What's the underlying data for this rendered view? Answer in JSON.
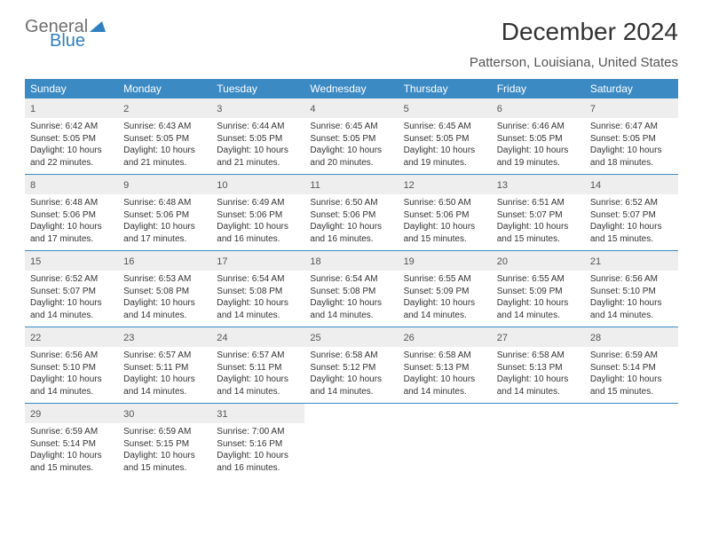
{
  "brand": {
    "word1": "General",
    "word2": "Blue",
    "icon_color": "#2f7fc1",
    "word1_color": "#6f6f6f",
    "word2_color": "#2f7fc1"
  },
  "title": "December 2024",
  "location": "Patterson, Louisiana, United States",
  "header_bg": "#3b8ac4",
  "day_headers": [
    "Sunday",
    "Monday",
    "Tuesday",
    "Wednesday",
    "Thursday",
    "Friday",
    "Saturday"
  ],
  "weeks": [
    [
      {
        "n": "1",
        "sr": "Sunrise: 6:42 AM",
        "ss": "Sunset: 5:05 PM",
        "d1": "Daylight: 10 hours",
        "d2": "and 22 minutes."
      },
      {
        "n": "2",
        "sr": "Sunrise: 6:43 AM",
        "ss": "Sunset: 5:05 PM",
        "d1": "Daylight: 10 hours",
        "d2": "and 21 minutes."
      },
      {
        "n": "3",
        "sr": "Sunrise: 6:44 AM",
        "ss": "Sunset: 5:05 PM",
        "d1": "Daylight: 10 hours",
        "d2": "and 21 minutes."
      },
      {
        "n": "4",
        "sr": "Sunrise: 6:45 AM",
        "ss": "Sunset: 5:05 PM",
        "d1": "Daylight: 10 hours",
        "d2": "and 20 minutes."
      },
      {
        "n": "5",
        "sr": "Sunrise: 6:45 AM",
        "ss": "Sunset: 5:05 PM",
        "d1": "Daylight: 10 hours",
        "d2": "and 19 minutes."
      },
      {
        "n": "6",
        "sr": "Sunrise: 6:46 AM",
        "ss": "Sunset: 5:05 PM",
        "d1": "Daylight: 10 hours",
        "d2": "and 19 minutes."
      },
      {
        "n": "7",
        "sr": "Sunrise: 6:47 AM",
        "ss": "Sunset: 5:05 PM",
        "d1": "Daylight: 10 hours",
        "d2": "and 18 minutes."
      }
    ],
    [
      {
        "n": "8",
        "sr": "Sunrise: 6:48 AM",
        "ss": "Sunset: 5:06 PM",
        "d1": "Daylight: 10 hours",
        "d2": "and 17 minutes."
      },
      {
        "n": "9",
        "sr": "Sunrise: 6:48 AM",
        "ss": "Sunset: 5:06 PM",
        "d1": "Daylight: 10 hours",
        "d2": "and 17 minutes."
      },
      {
        "n": "10",
        "sr": "Sunrise: 6:49 AM",
        "ss": "Sunset: 5:06 PM",
        "d1": "Daylight: 10 hours",
        "d2": "and 16 minutes."
      },
      {
        "n": "11",
        "sr": "Sunrise: 6:50 AM",
        "ss": "Sunset: 5:06 PM",
        "d1": "Daylight: 10 hours",
        "d2": "and 16 minutes."
      },
      {
        "n": "12",
        "sr": "Sunrise: 6:50 AM",
        "ss": "Sunset: 5:06 PM",
        "d1": "Daylight: 10 hours",
        "d2": "and 15 minutes."
      },
      {
        "n": "13",
        "sr": "Sunrise: 6:51 AM",
        "ss": "Sunset: 5:07 PM",
        "d1": "Daylight: 10 hours",
        "d2": "and 15 minutes."
      },
      {
        "n": "14",
        "sr": "Sunrise: 6:52 AM",
        "ss": "Sunset: 5:07 PM",
        "d1": "Daylight: 10 hours",
        "d2": "and 15 minutes."
      }
    ],
    [
      {
        "n": "15",
        "sr": "Sunrise: 6:52 AM",
        "ss": "Sunset: 5:07 PM",
        "d1": "Daylight: 10 hours",
        "d2": "and 14 minutes."
      },
      {
        "n": "16",
        "sr": "Sunrise: 6:53 AM",
        "ss": "Sunset: 5:08 PM",
        "d1": "Daylight: 10 hours",
        "d2": "and 14 minutes."
      },
      {
        "n": "17",
        "sr": "Sunrise: 6:54 AM",
        "ss": "Sunset: 5:08 PM",
        "d1": "Daylight: 10 hours",
        "d2": "and 14 minutes."
      },
      {
        "n": "18",
        "sr": "Sunrise: 6:54 AM",
        "ss": "Sunset: 5:08 PM",
        "d1": "Daylight: 10 hours",
        "d2": "and 14 minutes."
      },
      {
        "n": "19",
        "sr": "Sunrise: 6:55 AM",
        "ss": "Sunset: 5:09 PM",
        "d1": "Daylight: 10 hours",
        "d2": "and 14 minutes."
      },
      {
        "n": "20",
        "sr": "Sunrise: 6:55 AM",
        "ss": "Sunset: 5:09 PM",
        "d1": "Daylight: 10 hours",
        "d2": "and 14 minutes."
      },
      {
        "n": "21",
        "sr": "Sunrise: 6:56 AM",
        "ss": "Sunset: 5:10 PM",
        "d1": "Daylight: 10 hours",
        "d2": "and 14 minutes."
      }
    ],
    [
      {
        "n": "22",
        "sr": "Sunrise: 6:56 AM",
        "ss": "Sunset: 5:10 PM",
        "d1": "Daylight: 10 hours",
        "d2": "and 14 minutes."
      },
      {
        "n": "23",
        "sr": "Sunrise: 6:57 AM",
        "ss": "Sunset: 5:11 PM",
        "d1": "Daylight: 10 hours",
        "d2": "and 14 minutes."
      },
      {
        "n": "24",
        "sr": "Sunrise: 6:57 AM",
        "ss": "Sunset: 5:11 PM",
        "d1": "Daylight: 10 hours",
        "d2": "and 14 minutes."
      },
      {
        "n": "25",
        "sr": "Sunrise: 6:58 AM",
        "ss": "Sunset: 5:12 PM",
        "d1": "Daylight: 10 hours",
        "d2": "and 14 minutes."
      },
      {
        "n": "26",
        "sr": "Sunrise: 6:58 AM",
        "ss": "Sunset: 5:13 PM",
        "d1": "Daylight: 10 hours",
        "d2": "and 14 minutes."
      },
      {
        "n": "27",
        "sr": "Sunrise: 6:58 AM",
        "ss": "Sunset: 5:13 PM",
        "d1": "Daylight: 10 hours",
        "d2": "and 14 minutes."
      },
      {
        "n": "28",
        "sr": "Sunrise: 6:59 AM",
        "ss": "Sunset: 5:14 PM",
        "d1": "Daylight: 10 hours",
        "d2": "and 15 minutes."
      }
    ],
    [
      {
        "n": "29",
        "sr": "Sunrise: 6:59 AM",
        "ss": "Sunset: 5:14 PM",
        "d1": "Daylight: 10 hours",
        "d2": "and 15 minutes."
      },
      {
        "n": "30",
        "sr": "Sunrise: 6:59 AM",
        "ss": "Sunset: 5:15 PM",
        "d1": "Daylight: 10 hours",
        "d2": "and 15 minutes."
      },
      {
        "n": "31",
        "sr": "Sunrise: 7:00 AM",
        "ss": "Sunset: 5:16 PM",
        "d1": "Daylight: 10 hours",
        "d2": "and 16 minutes."
      },
      null,
      null,
      null,
      null
    ]
  ]
}
